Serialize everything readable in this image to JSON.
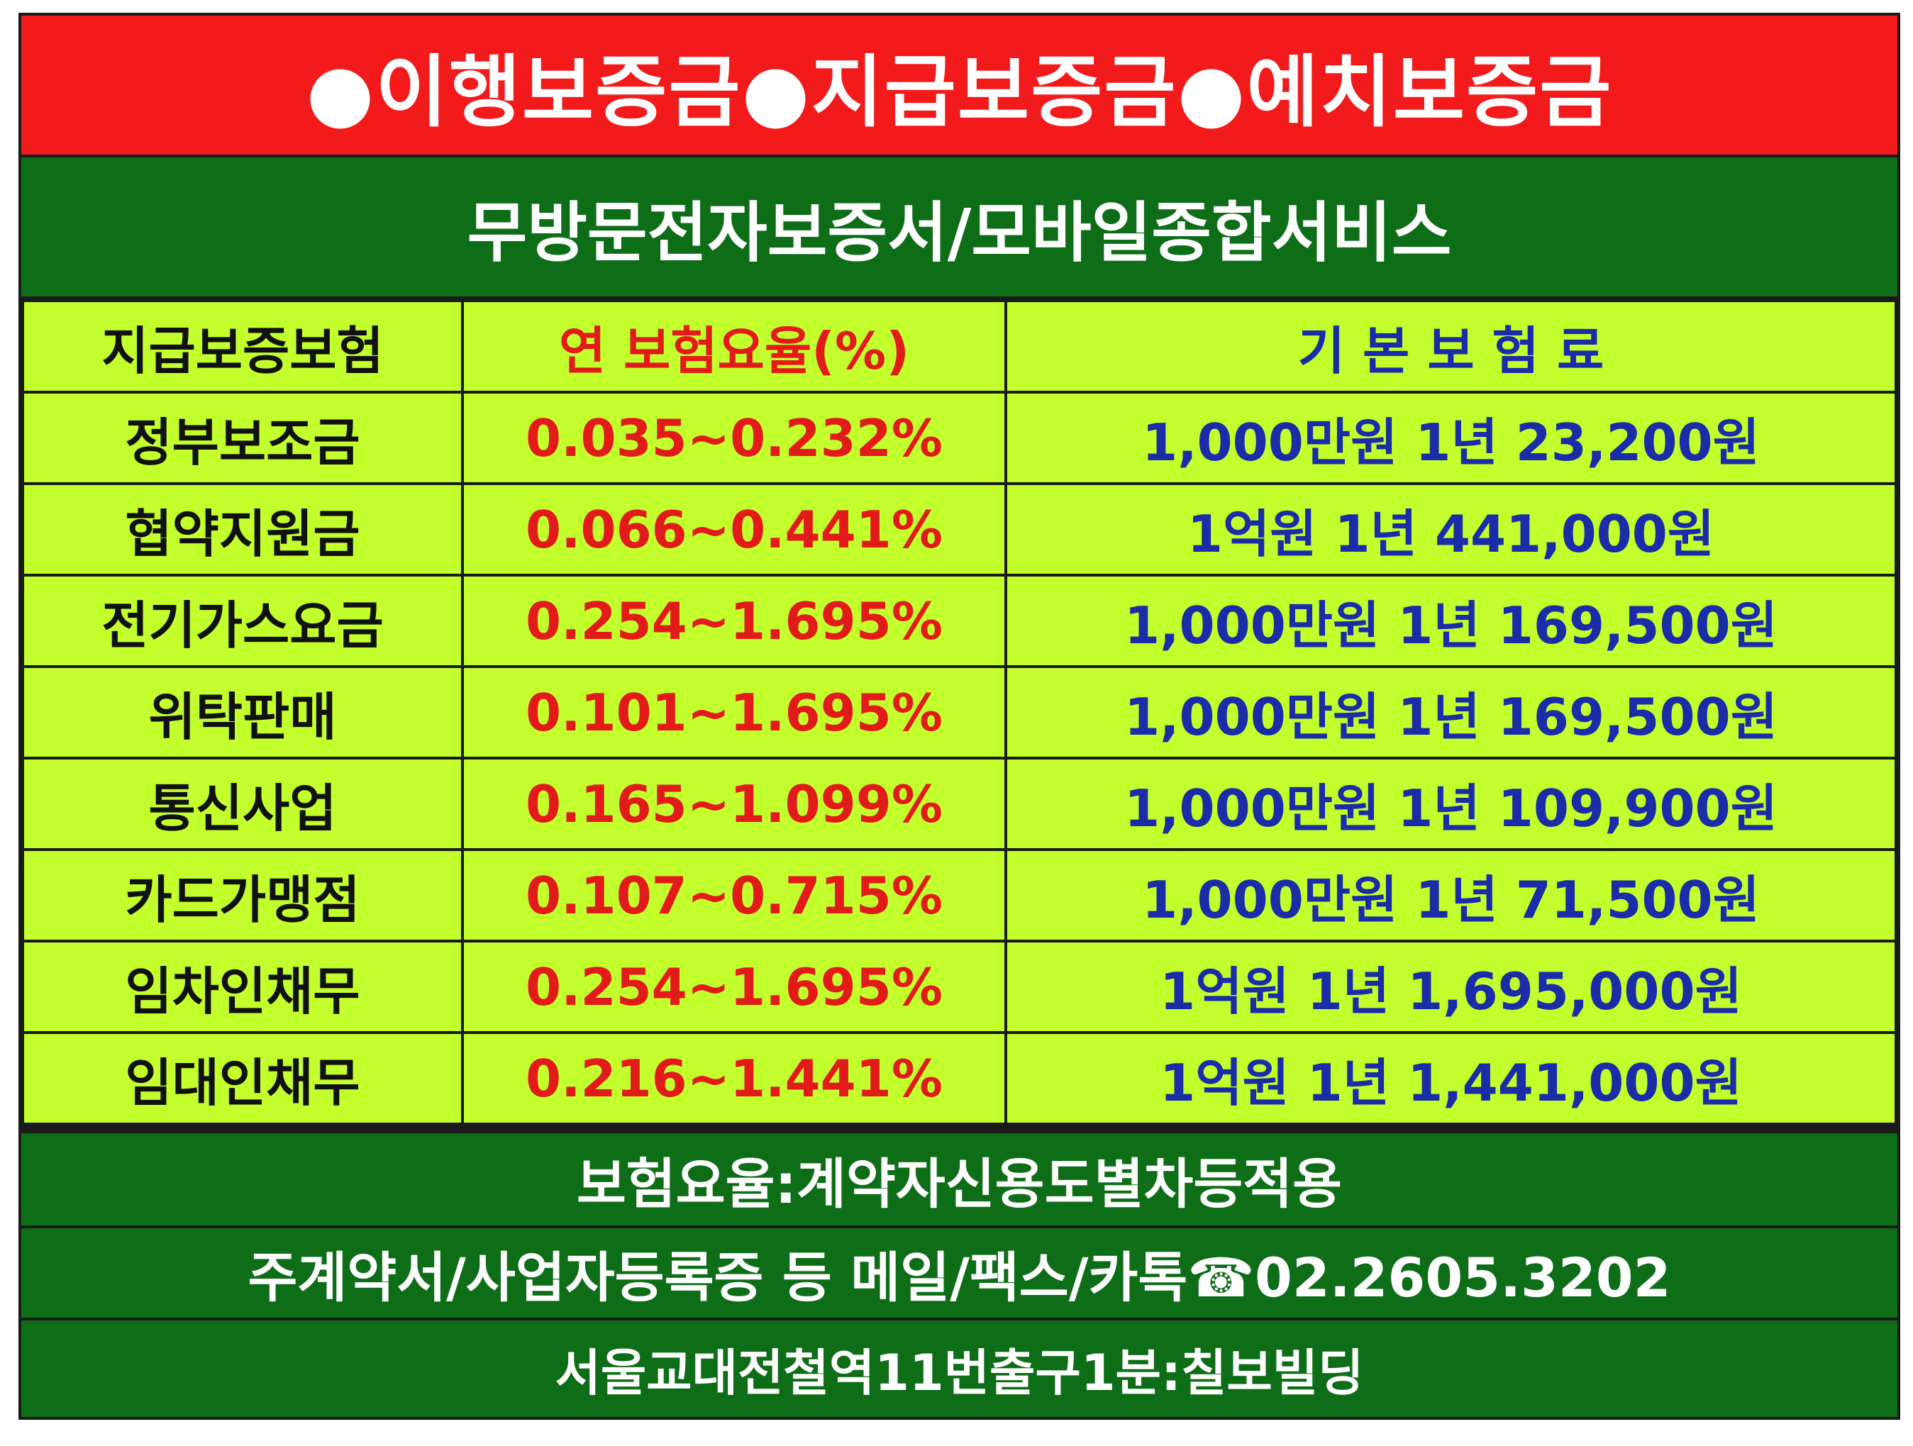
{
  "banner": "●이행보증금●지급보증금●예치보증금",
  "subtitle": "무방문전자보증서/모바일종합서비스",
  "table": {
    "headers": [
      "지급보증보험",
      "연 보험요율(%)",
      "기 본 보 험 료"
    ],
    "rows": [
      {
        "name": "정부보조금",
        "rate": "0.035~0.232%",
        "premium": "1,000만원 1년 23,200원"
      },
      {
        "name": "협약지원금",
        "rate": "0.066~0.441%",
        "premium": "1억원 1년 441,000원"
      },
      {
        "name": "전기가스요금",
        "rate": "0.254~1.695%",
        "premium": "1,000만원 1년 169,500원"
      },
      {
        "name": "위탁판매",
        "rate": "0.101~1.695%",
        "premium": "1,000만원 1년 169,500원"
      },
      {
        "name": "통신사업",
        "rate": "0.165~1.099%",
        "premium": "1,000만원 1년 109,900원"
      },
      {
        "name": "카드가맹점",
        "rate": "0.107~0.715%",
        "premium": "1,000만원 1년 71,500원"
      },
      {
        "name": "임차인채무",
        "rate": "0.254~1.695%",
        "premium": "1억원 1년 1,695,000원"
      },
      {
        "name": "임대인채무",
        "rate": "0.216~1.441%",
        "premium": "1억원 1년 1,441,000원"
      }
    ]
  },
  "footer": {
    "note": "보험요율:계약자신용도별차등적용",
    "contact": "주계약서/사업자등록증 등 메일/팩스/카톡☎02.2605.3202",
    "location": "서울교대전철역11번출구1분:칠보빌딩"
  },
  "colors": {
    "banner_bg": "#f21a1a",
    "green_bg": "#0e6e17",
    "table_bg": "#c2ff2c",
    "rate_text": "#e21a1a",
    "premium_text": "#1a2ca8"
  }
}
